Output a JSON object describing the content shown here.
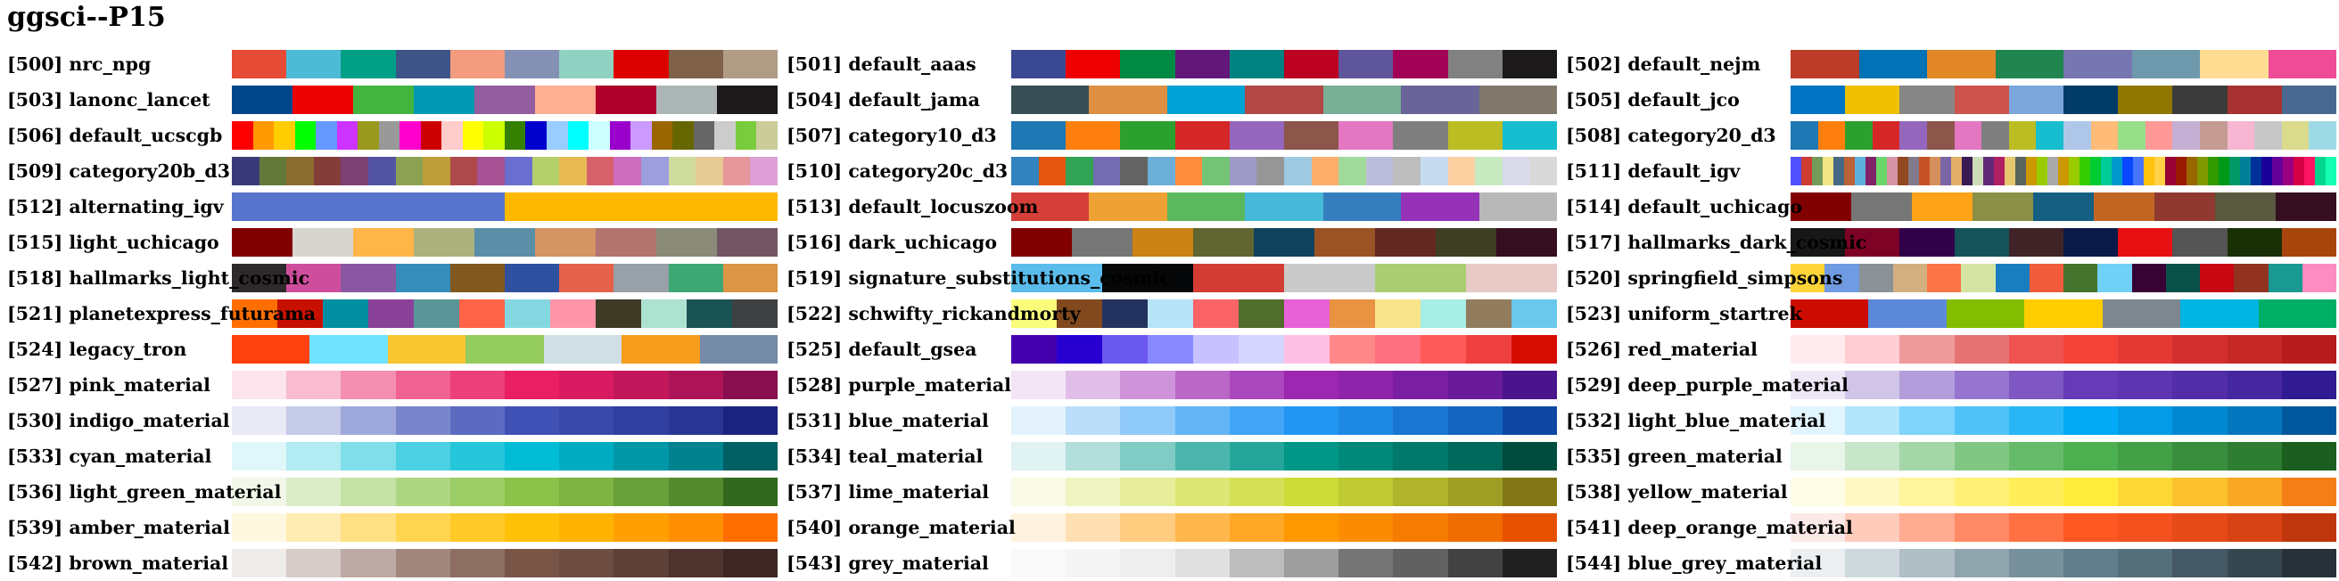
{
  "title": "ggsci--P15",
  "palettes": [
    {
      "label": "[500] nrc_npg",
      "colors": [
        "#E64B35",
        "#4DBBD5",
        "#00A087",
        "#3C5488",
        "#F39B7F",
        "#8491B4",
        "#91D1C2",
        "#DC0000",
        "#7E6148",
        "#B09C85"
      ]
    },
    {
      "label": "[501] default_aaas",
      "colors": [
        "#3B4992",
        "#EE0000",
        "#008B45",
        "#631879",
        "#008280",
        "#BB0021",
        "#5F559B",
        "#A20056",
        "#808180",
        "#1B1919"
      ]
    },
    {
      "label": "[502] default_nejm",
      "colors": [
        "#BC3C29",
        "#0072B5",
        "#E18727",
        "#20854E",
        "#7876B1",
        "#6F99AD",
        "#FFDC91",
        "#EE4C97"
      ]
    },
    {
      "label": "[503] lanonc_lancet",
      "colors": [
        "#00468B",
        "#ED0000",
        "#42B540",
        "#0099B4",
        "#925E9F",
        "#FDAF91",
        "#AD002A",
        "#ADB6B6",
        "#1B1919"
      ]
    },
    {
      "label": "[504] default_jama",
      "colors": [
        "#374E55",
        "#DF8F44",
        "#00A1D5",
        "#B24745",
        "#79AF97",
        "#6A6599",
        "#80796B"
      ]
    },
    {
      "label": "[505] default_jco",
      "colors": [
        "#0073C2",
        "#EFC000",
        "#868686",
        "#CD534C",
        "#7AA6DC",
        "#003C67",
        "#8F7700",
        "#3B3B3B",
        "#A73030",
        "#4A6990"
      ]
    },
    {
      "label": "[506] default_ucscgb",
      "colors": [
        "#FF0000",
        "#FF9900",
        "#FFCC00",
        "#00FF00",
        "#6699FF",
        "#CC33FF",
        "#99991E",
        "#999999",
        "#FF00CC",
        "#CC0000",
        "#FFCCCC",
        "#FFFF00",
        "#CCFF00",
        "#358000",
        "#0000CC",
        "#99CCFF",
        "#00FFFF",
        "#CCFFFF",
        "#9900CC",
        "#CC99FF",
        "#996600",
        "#666600",
        "#666666",
        "#CCCCCC",
        "#79CC3D",
        "#CCCC99"
      ]
    },
    {
      "label": "[507] category10_d3",
      "colors": [
        "#1F77B4",
        "#FF7F0E",
        "#2CA02C",
        "#D62728",
        "#9467BD",
        "#8C564B",
        "#E377C2",
        "#7F7F7F",
        "#BCBD22",
        "#17BECF"
      ]
    },
    {
      "label": "[508] category20_d3",
      "colors": [
        "#1F77B4",
        "#FF7F0E",
        "#2CA02C",
        "#D62728",
        "#9467BD",
        "#8C564B",
        "#E377C2",
        "#7F7F7F",
        "#BCBD22",
        "#17BECF",
        "#AEC7E8",
        "#FFBB78",
        "#98DF8A",
        "#FF9896",
        "#C5B0D5",
        "#C49C94",
        "#F7B6D2",
        "#C7C7C7",
        "#DBDB8D",
        "#9EDAE5"
      ]
    },
    {
      "label": "[509] category20b_d3",
      "colors": [
        "#393B79",
        "#637939",
        "#8C6D31",
        "#843C39",
        "#7B4173",
        "#5254A3",
        "#8CA252",
        "#BD9E39",
        "#AD494A",
        "#A55194",
        "#6B6ECF",
        "#B5CF6B",
        "#E7BA52",
        "#D6616B",
        "#CE6DBD",
        "#9C9EDE",
        "#CEDB9C",
        "#E7CB94",
        "#E7969C",
        "#DE9ED6"
      ]
    },
    {
      "label": "[510] category20c_d3",
      "colors": [
        "#3182BD",
        "#E6550D",
        "#31A354",
        "#756BB1",
        "#636363",
        "#6BAED6",
        "#FD8D3C",
        "#74C476",
        "#9E9AC8",
        "#969696",
        "#9ECAE1",
        "#FDAE6B",
        "#A1D99B",
        "#BCBDDC",
        "#BDBDBD",
        "#C6DBEF",
        "#FDD0A2",
        "#C7E9C0",
        "#DADAEB",
        "#D9D9D9"
      ]
    },
    {
      "label": "[511] default_igv",
      "colors": [
        "#5050FF",
        "#CE3D32",
        "#749B58",
        "#F0E685",
        "#466983",
        "#BA6338",
        "#5DB1DD",
        "#802268",
        "#6BD76B",
        "#D595A7",
        "#924822",
        "#837B8D",
        "#C75127",
        "#D58F5C",
        "#7A65A5",
        "#E4AF69",
        "#3B1B53",
        "#CDDEB7",
        "#612A79",
        "#AE1F63",
        "#E7C76F",
        "#5A655E",
        "#CC9900",
        "#99CC00",
        "#A9A9A9",
        "#CC9900",
        "#99CC00",
        "#33CC00",
        "#00CC33",
        "#00CC99",
        "#0099CC",
        "#0A47FF",
        "#4775FF",
        "#FFC20A",
        "#FFD147",
        "#990033",
        "#991A00",
        "#996600",
        "#809900",
        "#339900",
        "#00991A",
        "#009966",
        "#008099",
        "#003399",
        "#1A0099",
        "#660099",
        "#990080",
        "#D60047",
        "#FF1463",
        "#00D68F",
        "#14FFB1"
      ]
    },
    {
      "label": "[512] alternating_igv",
      "colors": [
        "#5773CC",
        "#FFB900"
      ]
    },
    {
      "label": "[513] default_locuszoom",
      "colors": [
        "#D43F3A",
        "#EEA236",
        "#5CB85C",
        "#46B8DA",
        "#357EBD",
        "#9632B8",
        "#B8B8B8"
      ]
    },
    {
      "label": "[514] default_uchicago",
      "colors": [
        "#800000",
        "#767676",
        "#FFA319",
        "#8A9045",
        "#155F83",
        "#C16622",
        "#8F3931",
        "#58593F",
        "#350E20"
      ]
    },
    {
      "label": "[515] light_uchicago",
      "colors": [
        "#800000",
        "#D6D6CE",
        "#FFB547",
        "#ADB17D",
        "#5B8FA8",
        "#D49464",
        "#B1746F",
        "#8A8B79",
        "#725663"
      ]
    },
    {
      "label": "[516] dark_uchicago",
      "colors": [
        "#800000",
        "#767676",
        "#CC8214",
        "#616530",
        "#0F425C",
        "#9A5324",
        "#642822",
        "#3E3E23",
        "#350E20"
      ]
    },
    {
      "label": "[517] hallmarks_dark_cosmic",
      "colors": [
        "#171717",
        "#7D0226",
        "#300049",
        "#165459",
        "#3F2327",
        "#0B1948",
        "#E71012",
        "#555555",
        "#193006",
        "#A8450C"
      ]
    },
    {
      "label": "[518] hallmarks_light_cosmic",
      "colors": [
        "#2E2A2B",
        "#CF4E9C",
        "#8C57A2",
        "#358DB9",
        "#82581F",
        "#2F509E",
        "#E5614C",
        "#97A1A7",
        "#3DA873",
        "#DC9445"
      ]
    },
    {
      "label": "[519] signature_substitutions_cosmic",
      "colors": [
        "#5ABCEB",
        "#050708",
        "#D33C32",
        "#CBCACB",
        "#ABCD72",
        "#E7C9C6"
      ]
    },
    {
      "label": "[520] springfield_simpsons",
      "colors": [
        "#FED439",
        "#709AE1",
        "#8A9197",
        "#D2AF81",
        "#FD7446",
        "#D5E4A2",
        "#197EC0",
        "#F05C3B",
        "#46732E",
        "#71D0F5",
        "#370335",
        "#075149",
        "#C80813",
        "#91331F",
        "#1A9993",
        "#FD8CC1"
      ]
    },
    {
      "label": "[521] planetexpress_futurama",
      "colors": [
        "#FF6F00",
        "#C71000",
        "#008EA0",
        "#8A4198",
        "#5A9599",
        "#FF6348",
        "#84D7E1",
        "#FF95A8",
        "#3D3B25",
        "#ADE2D0",
        "#1A5354",
        "#3F4041"
      ]
    },
    {
      "label": "[522] schwifty_rickandmorty",
      "colors": [
        "#FAFD7C",
        "#82491E",
        "#24325F",
        "#B7E4F9",
        "#FB6467",
        "#526E2D",
        "#E762D7",
        "#E89242",
        "#FAE48B",
        "#A6EEE6",
        "#917C5D",
        "#69C8EC"
      ]
    },
    {
      "label": "[523] uniform_startrek",
      "colors": [
        "#CC0C00",
        "#5C88DA",
        "#84BD00",
        "#FFCD00",
        "#7C878E",
        "#00B5E2",
        "#00AF66"
      ]
    },
    {
      "label": "[524] legacy_tron",
      "colors": [
        "#FF410D",
        "#6EE2FF",
        "#F7C530",
        "#95CC5E",
        "#D0DFE6",
        "#F79D1E",
        "#748AA6"
      ]
    },
    {
      "label": "[525] default_gsea",
      "colors": [
        "#4500AD",
        "#2700D1",
        "#6B58EF",
        "#8888FF",
        "#C7C1FF",
        "#D5D5FF",
        "#FFC0E5",
        "#FF8989",
        "#FF7080",
        "#FF5A5A",
        "#EF4040",
        "#D60C00"
      ]
    },
    {
      "label": "[526] red_material",
      "colors": [
        "#FFEBEE",
        "#FFCDD2",
        "#EF9A9A",
        "#E57373",
        "#EF5350",
        "#F44336",
        "#E53935",
        "#D32F2F",
        "#C62828",
        "#B71C1C"
      ]
    },
    {
      "label": "[527] pink_material",
      "colors": [
        "#FCE4EC",
        "#F8BBD0",
        "#F48FB1",
        "#F06292",
        "#EC407A",
        "#E91E63",
        "#D81B60",
        "#C2185B",
        "#AD1457",
        "#880E4F"
      ]
    },
    {
      "label": "[528] purple_material",
      "colors": [
        "#F3E5F5",
        "#E1BEE7",
        "#CE93D8",
        "#BA68C8",
        "#AB47BC",
        "#9C27B0",
        "#8E24AA",
        "#7B1FA2",
        "#6A1B9A",
        "#4A148C"
      ]
    },
    {
      "label": "[529] deep_purple_material",
      "colors": [
        "#EDE7F6",
        "#D1C4E9",
        "#B39DDB",
        "#9575CD",
        "#7E57C2",
        "#673AB7",
        "#5E35B1",
        "#512DA8",
        "#4527A0",
        "#311B92"
      ]
    },
    {
      "label": "[530] indigo_material",
      "colors": [
        "#E8EAF6",
        "#C5CAE9",
        "#9FA8DA",
        "#7986CB",
        "#5C6BC0",
        "#3F51B5",
        "#3949AB",
        "#303F9F",
        "#283593",
        "#1A237E"
      ]
    },
    {
      "label": "[531] blue_material",
      "colors": [
        "#E3F2FD",
        "#BBDEFB",
        "#90CAF9",
        "#64B5F6",
        "#42A5F5",
        "#2196F3",
        "#1E88E5",
        "#1976D2",
        "#1565C0",
        "#0D47A1"
      ]
    },
    {
      "label": "[532] light_blue_material",
      "colors": [
        "#E1F5FE",
        "#B3E5FC",
        "#81D4FA",
        "#4FC3F7",
        "#29B6F6",
        "#03A9F4",
        "#039BE5",
        "#0288D1",
        "#0277BD",
        "#01579B"
      ]
    },
    {
      "label": "[533] cyan_material",
      "colors": [
        "#E0F7FA",
        "#B2EBF2",
        "#80DEEA",
        "#4DD0E1",
        "#26C6DA",
        "#00BCD4",
        "#00ACC1",
        "#0097A7",
        "#00838F",
        "#006064"
      ]
    },
    {
      "label": "[534] teal_material",
      "colors": [
        "#E0F2F1",
        "#B2DFDB",
        "#80CBC4",
        "#4DB6AC",
        "#26A69A",
        "#009688",
        "#00897B",
        "#00796B",
        "#00695C",
        "#004D40"
      ]
    },
    {
      "label": "[535] green_material",
      "colors": [
        "#E8F5E9",
        "#C8E6C9",
        "#A5D6A7",
        "#81C784",
        "#66BB6A",
        "#4CAF50",
        "#43A047",
        "#388E3C",
        "#2E7D32",
        "#1B5E20"
      ]
    },
    {
      "label": "[536] light_green_material",
      "colors": [
        "#F1F8E9",
        "#DCEDC8",
        "#C5E1A5",
        "#AED581",
        "#9CCC65",
        "#8BC34A",
        "#7CB342",
        "#689F38",
        "#558B2F",
        "#33691E"
      ]
    },
    {
      "label": "[537] lime_material",
      "colors": [
        "#F9FBE7",
        "#F0F4C3",
        "#E6EE9C",
        "#DCE775",
        "#D4E157",
        "#CDDC39",
        "#C0CA33",
        "#AFB42B",
        "#9E9D24",
        "#827717"
      ]
    },
    {
      "label": "[538] yellow_material",
      "colors": [
        "#FFFDE7",
        "#FFF9C4",
        "#FFF59D",
        "#FFF176",
        "#FFEE58",
        "#FFEB3B",
        "#FDD835",
        "#FBC02D",
        "#F9A825",
        "#F57F17"
      ]
    },
    {
      "label": "[539] amber_material",
      "colors": [
        "#FFF8E1",
        "#FFECB3",
        "#FFE082",
        "#FFD54F",
        "#FFCA28",
        "#FFC107",
        "#FFB300",
        "#FFA000",
        "#FF8F00",
        "#FF6F00"
      ]
    },
    {
      "label": "[540] orange_material",
      "colors": [
        "#FFF3E0",
        "#FFE0B2",
        "#FFCC80",
        "#FFB74D",
        "#FFA726",
        "#FF9800",
        "#FB8C00",
        "#F57C00",
        "#EF6C00",
        "#E65100"
      ]
    },
    {
      "label": "[541] deep_orange_material",
      "colors": [
        "#FBE9E7",
        "#FFCCBC",
        "#FFAB91",
        "#FF8A65",
        "#FF7043",
        "#FF5722",
        "#F4511E",
        "#E64A19",
        "#D84315",
        "#BF360C"
      ]
    },
    {
      "label": "[542] brown_material",
      "colors": [
        "#EFEBE9",
        "#D7CCC8",
        "#BCAAA4",
        "#A1887F",
        "#8D6E63",
        "#795548",
        "#6D4C41",
        "#5D4037",
        "#4E342E",
        "#3E2723"
      ]
    },
    {
      "label": "[543] grey_material",
      "colors": [
        "#FAFAFA",
        "#F5F5F5",
        "#EEEEEE",
        "#E0E0E0",
        "#BDBDBD",
        "#9E9E9E",
        "#757575",
        "#616161",
        "#424242",
        "#212121"
      ]
    },
    {
      "label": "[544] blue_grey_material",
      "colors": [
        "#ECEFF1",
        "#CFD8DC",
        "#B0BEC5",
        "#90A4AE",
        "#78909C",
        "#607D8B",
        "#546E7A",
        "#455A64",
        "#37474F",
        "#263238"
      ]
    }
  ]
}
